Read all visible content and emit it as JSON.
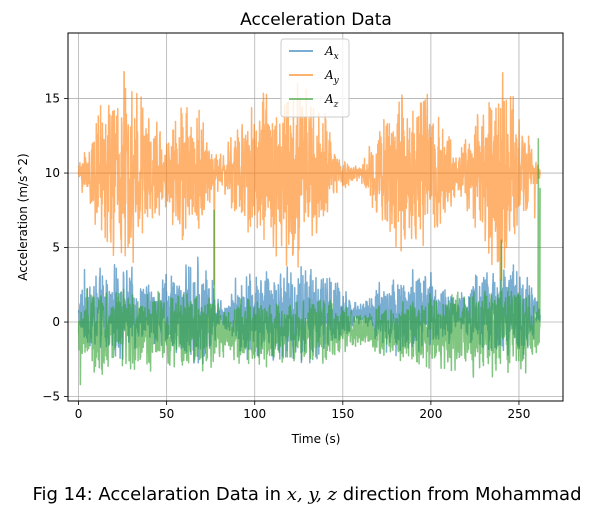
{
  "chart_data": {
    "type": "line",
    "title": "Acceleration Data",
    "xlabel": "Time (s)",
    "ylabel": "Acceleration (m/s^2)",
    "xlim": [
      -6,
      275
    ],
    "ylim": [
      -5.3,
      19.4
    ],
    "xticks": [
      0,
      50,
      100,
      150,
      200,
      250
    ],
    "yticks": [
      -5,
      0,
      5,
      10,
      15
    ],
    "grid": true,
    "legend": {
      "position": "upper center"
    },
    "duration": 262,
    "series": [
      {
        "name": "A_x",
        "label_base": "A",
        "label_sub": "x",
        "color": "#1f77b4",
        "alpha": 0.6,
        "baseline": 0.6,
        "envelope": {
          "t": [
            0,
            3,
            10,
            20,
            30,
            35,
            42,
            50,
            60,
            65,
            70,
            75,
            80,
            85,
            90,
            100,
            110,
            120,
            130,
            140,
            148,
            155,
            162,
            170,
            180,
            190,
            200,
            210,
            215,
            225,
            235,
            240,
            245,
            250,
            255,
            262
          ],
          "amp": [
            0.5,
            2.5,
            2.6,
            2.8,
            2.6,
            2.0,
            1.8,
            2.5,
            2.8,
            3.5,
            3.0,
            2.5,
            1.0,
            1.0,
            2.5,
            2.8,
            3.0,
            3.1,
            3.0,
            2.6,
            2.0,
            1.0,
            0.5,
            2.0,
            2.5,
            2.8,
            2.5,
            1.8,
            0.8,
            2.5,
            2.8,
            3.0,
            3.2,
            3.0,
            2.5,
            0.5
          ]
        }
      },
      {
        "name": "A_y",
        "label_base": "A",
        "label_sub": "y",
        "color": "#ff7f0e",
        "alpha": 0.6,
        "baseline": 10.0,
        "envelope": {
          "t": [
            0,
            3,
            8,
            15,
            20,
            25,
            30,
            35,
            40,
            45,
            50,
            55,
            60,
            65,
            70,
            75,
            80,
            85,
            90,
            100,
            110,
            120,
            125,
            130,
            140,
            145,
            150,
            155,
            160,
            170,
            180,
            190,
            200,
            210,
            215,
            220,
            230,
            235,
            240,
            245,
            250,
            255,
            258,
            262
          ],
          "amp": [
            0.4,
            1.5,
            3.0,
            4.5,
            5.5,
            6.5,
            6.0,
            5.0,
            4.0,
            3.0,
            2.0,
            3.5,
            4.5,
            4.5,
            4.0,
            1.5,
            1.2,
            2.0,
            3.5,
            4.5,
            5.0,
            5.5,
            5.8,
            5.0,
            3.5,
            1.5,
            1.0,
            0.6,
            0.5,
            3.0,
            4.5,
            5.0,
            4.5,
            2.5,
            1.0,
            2.5,
            5.0,
            6.0,
            6.5,
            5.5,
            4.0,
            2.5,
            1.0,
            0.5
          ]
        },
        "spikes": [
          [
            26,
            7.0
          ],
          [
            31,
            4.0
          ],
          [
            77,
            2.5
          ],
          [
            238,
            5.5
          ],
          [
            243,
            5.0
          ],
          [
            259,
            7.0
          ]
        ]
      },
      {
        "name": "A_z",
        "label_base": "A",
        "label_sub": "z",
        "color": "#2ca02c",
        "alpha": 0.6,
        "baseline": -0.6,
        "envelope": {
          "t": [
            0,
            3,
            10,
            20,
            30,
            40,
            50,
            60,
            70,
            75,
            80,
            85,
            90,
            100,
            110,
            120,
            130,
            140,
            150,
            160,
            170,
            180,
            190,
            200,
            210,
            220,
            230,
            240,
            250,
            255,
            262
          ],
          "amp": [
            1.5,
            2.5,
            2.8,
            2.6,
            2.5,
            2.4,
            2.2,
            2.4,
            2.5,
            2.5,
            1.8,
            1.8,
            2.0,
            2.2,
            2.0,
            2.0,
            2.0,
            2.0,
            1.5,
            1.0,
            1.5,
            1.8,
            2.0,
            2.5,
            2.5,
            2.5,
            2.8,
            3.0,
            2.8,
            2.5,
            1.5
          ]
        },
        "spikes": [
          [
            1,
            -4.2
          ],
          [
            77,
            7.5
          ],
          [
            261,
            12.3
          ],
          [
            262,
            9.0
          ],
          [
            240,
            5.5
          ]
        ]
      }
    ]
  },
  "caption": {
    "prefix": "Fig 14: Accelaration Data in ",
    "math_vars": "x, y, z",
    "suffix": " direction from Mohammad"
  }
}
